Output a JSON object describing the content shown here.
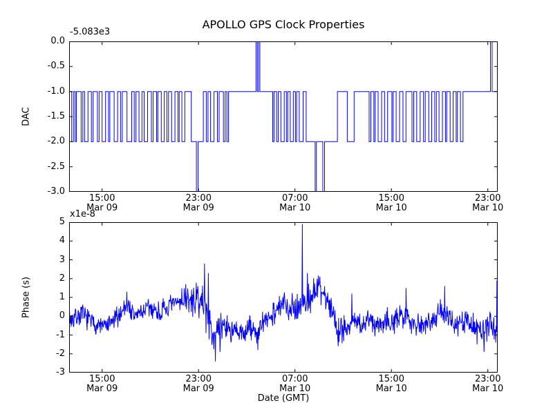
{
  "figure": {
    "background": "#ffffff",
    "line_color": "#0000ff",
    "axes_color": "#000000"
  },
  "chart_data": [
    {
      "type": "line",
      "subplot": "top",
      "title": "APOLLO GPS Clock Properties",
      "ylabel": "DAC",
      "y_offset_label": "-5.083e3",
      "ylim": [
        -3.0,
        0.0
      ],
      "ytick_values": [
        0.0,
        -0.5,
        -1.0,
        -1.5,
        -2.0,
        -2.5,
        -3.0
      ],
      "ytick_labels": [
        "0.0",
        "-0.5",
        "-1.0",
        "-1.5",
        "-2.0",
        "-2.5",
        "-3.0"
      ],
      "xticks": [
        {
          "f": 0.077,
          "time": "15:00",
          "date": "Mar 09"
        },
        {
          "f": 0.302,
          "time": "23:00",
          "date": "Mar 09"
        },
        {
          "f": 0.527,
          "time": "07:00",
          "date": "Mar 10"
        },
        {
          "f": 0.752,
          "time": "15:00",
          "date": "Mar 10"
        },
        {
          "f": 0.977,
          "time": "23:00",
          "date": "Mar 10"
        }
      ],
      "series_steps": [
        [
          0.0,
          -1
        ],
        [
          0.006,
          -2
        ],
        [
          0.01,
          -1
        ],
        [
          0.014,
          -2
        ],
        [
          0.017,
          -1
        ],
        [
          0.028,
          -2
        ],
        [
          0.032,
          -1
        ],
        [
          0.036,
          -2
        ],
        [
          0.044,
          -1
        ],
        [
          0.052,
          -2
        ],
        [
          0.056,
          -1
        ],
        [
          0.066,
          -2
        ],
        [
          0.07,
          -1
        ],
        [
          0.077,
          -2
        ],
        [
          0.085,
          -1
        ],
        [
          0.092,
          -2
        ],
        [
          0.095,
          -1
        ],
        [
          0.105,
          -2
        ],
        [
          0.113,
          -1
        ],
        [
          0.12,
          -2
        ],
        [
          0.124,
          -1
        ],
        [
          0.135,
          -2
        ],
        [
          0.146,
          -1
        ],
        [
          0.152,
          -2
        ],
        [
          0.156,
          -1
        ],
        [
          0.163,
          -2
        ],
        [
          0.17,
          -1
        ],
        [
          0.175,
          -2
        ],
        [
          0.183,
          -1
        ],
        [
          0.192,
          -2
        ],
        [
          0.196,
          -1
        ],
        [
          0.204,
          -2
        ],
        [
          0.207,
          -1
        ],
        [
          0.215,
          -2
        ],
        [
          0.222,
          -1
        ],
        [
          0.228,
          -2
        ],
        [
          0.232,
          -1
        ],
        [
          0.239,
          -2
        ],
        [
          0.247,
          -1
        ],
        [
          0.254,
          -2
        ],
        [
          0.257,
          -1
        ],
        [
          0.263,
          -2
        ],
        [
          0.27,
          -1
        ],
        [
          0.285,
          -2
        ],
        [
          0.297,
          -3
        ],
        [
          0.301,
          -2
        ],
        [
          0.313,
          -1
        ],
        [
          0.32,
          -2
        ],
        [
          0.324,
          -1
        ],
        [
          0.33,
          -2
        ],
        [
          0.338,
          -1
        ],
        [
          0.346,
          -2
        ],
        [
          0.35,
          -1
        ],
        [
          0.36,
          -2
        ],
        [
          0.364,
          -1
        ],
        [
          0.368,
          -2
        ],
        [
          0.372,
          -1
        ],
        [
          0.436,
          0
        ],
        [
          0.439,
          -1
        ],
        [
          0.442,
          0
        ],
        [
          0.445,
          -1
        ],
        [
          0.475,
          -2
        ],
        [
          0.478,
          -1
        ],
        [
          0.484,
          -2
        ],
        [
          0.488,
          -1
        ],
        [
          0.494,
          -2
        ],
        [
          0.502,
          -1
        ],
        [
          0.507,
          -2
        ],
        [
          0.51,
          -1
        ],
        [
          0.516,
          -2
        ],
        [
          0.523,
          -1
        ],
        [
          0.528,
          -2
        ],
        [
          0.531,
          -1
        ],
        [
          0.537,
          -2
        ],
        [
          0.546,
          -1
        ],
        [
          0.553,
          -2
        ],
        [
          0.574,
          -3
        ],
        [
          0.577,
          -2
        ],
        [
          0.592,
          -3
        ],
        [
          0.596,
          -2
        ],
        [
          0.626,
          -1
        ],
        [
          0.649,
          -2
        ],
        [
          0.665,
          -1
        ],
        [
          0.7,
          -2
        ],
        [
          0.704,
          -1
        ],
        [
          0.711,
          -2
        ],
        [
          0.714,
          -1
        ],
        [
          0.721,
          -2
        ],
        [
          0.729,
          -1
        ],
        [
          0.736,
          -2
        ],
        [
          0.743,
          -1
        ],
        [
          0.753,
          -2
        ],
        [
          0.756,
          -1
        ],
        [
          0.763,
          -2
        ],
        [
          0.771,
          -1
        ],
        [
          0.779,
          -2
        ],
        [
          0.786,
          -1
        ],
        [
          0.8,
          -2
        ],
        [
          0.804,
          -1
        ],
        [
          0.811,
          -2
        ],
        [
          0.819,
          -1
        ],
        [
          0.827,
          -2
        ],
        [
          0.831,
          -1
        ],
        [
          0.839,
          -2
        ],
        [
          0.846,
          -1
        ],
        [
          0.853,
          -2
        ],
        [
          0.857,
          -1
        ],
        [
          0.863,
          -2
        ],
        [
          0.871,
          -1
        ],
        [
          0.878,
          -2
        ],
        [
          0.881,
          -1
        ],
        [
          0.889,
          -2
        ],
        [
          0.896,
          -1
        ],
        [
          0.903,
          -2
        ],
        [
          0.906,
          -1
        ],
        [
          0.913,
          -2
        ],
        [
          0.919,
          -1
        ],
        [
          0.983,
          0
        ],
        [
          0.987,
          -1
        ]
      ]
    },
    {
      "type": "line",
      "subplot": "bottom",
      "ylabel": "Phase (s)",
      "xlabel": "Date (GMT)",
      "y_multiplier_label": "x1e-8",
      "ylim": [
        -3,
        5
      ],
      "ytick_values": [
        5,
        4,
        3,
        2,
        1,
        0,
        -1,
        -2,
        -3
      ],
      "ytick_labels": [
        "5",
        "4",
        "3",
        "2",
        "1",
        "0",
        "-1",
        "-2",
        "-3"
      ],
      "xticks": [
        {
          "f": 0.077,
          "time": "15:00",
          "date": "Mar 09"
        },
        {
          "f": 0.302,
          "time": "23:00",
          "date": "Mar 09"
        },
        {
          "f": 0.527,
          "time": "07:00",
          "date": "Mar 10"
        },
        {
          "f": 0.752,
          "time": "15:00",
          "date": "Mar 10"
        },
        {
          "f": 0.977,
          "time": "23:00",
          "date": "Mar 10"
        }
      ],
      "noise_seed": 7,
      "n_points": 1100,
      "envelope": [
        [
          0.0,
          -0.2,
          0.35
        ],
        [
          0.03,
          0.1,
          0.35
        ],
        [
          0.06,
          -0.45,
          0.3
        ],
        [
          0.09,
          -0.55,
          0.3
        ],
        [
          0.115,
          0.0,
          0.35
        ],
        [
          0.135,
          0.7,
          0.4
        ],
        [
          0.15,
          0.0,
          0.35
        ],
        [
          0.17,
          0.25,
          0.35
        ],
        [
          0.19,
          0.45,
          0.35
        ],
        [
          0.21,
          0.2,
          0.35
        ],
        [
          0.23,
          0.4,
          0.35
        ],
        [
          0.25,
          0.7,
          0.4
        ],
        [
          0.27,
          1.0,
          0.4
        ],
        [
          0.285,
          0.7,
          0.45
        ],
        [
          0.3,
          0.9,
          0.5
        ],
        [
          0.315,
          0.6,
          0.6
        ],
        [
          0.33,
          -0.6,
          0.6
        ],
        [
          0.345,
          -1.0,
          0.5
        ],
        [
          0.36,
          -0.4,
          0.45
        ],
        [
          0.38,
          -0.8,
          0.4
        ],
        [
          0.4,
          -1.0,
          0.4
        ],
        [
          0.42,
          -0.6,
          0.4
        ],
        [
          0.44,
          -0.9,
          0.45
        ],
        [
          0.46,
          -0.2,
          0.4
        ],
        [
          0.48,
          0.3,
          0.4
        ],
        [
          0.5,
          0.6,
          0.45
        ],
        [
          0.52,
          0.5,
          0.45
        ],
        [
          0.54,
          0.6,
          0.5
        ],
        [
          0.555,
          0.8,
          0.5
        ],
        [
          0.57,
          1.2,
          0.5
        ],
        [
          0.585,
          1.5,
          0.45
        ],
        [
          0.6,
          1.0,
          0.45
        ],
        [
          0.615,
          0.2,
          0.5
        ],
        [
          0.63,
          -0.7,
          0.5
        ],
        [
          0.65,
          -0.55,
          0.45
        ],
        [
          0.665,
          -0.25,
          0.4
        ],
        [
          0.68,
          -0.5,
          0.4
        ],
        [
          0.7,
          -0.2,
          0.4
        ],
        [
          0.72,
          -0.45,
          0.4
        ],
        [
          0.74,
          -0.1,
          0.4
        ],
        [
          0.76,
          -0.35,
          0.4
        ],
        [
          0.78,
          0.1,
          0.4
        ],
        [
          0.8,
          -0.25,
          0.4
        ],
        [
          0.82,
          -0.5,
          0.4
        ],
        [
          0.84,
          -0.2,
          0.4
        ],
        [
          0.86,
          0.1,
          0.4
        ],
        [
          0.875,
          0.3,
          0.45
        ],
        [
          0.89,
          -0.3,
          0.4
        ],
        [
          0.91,
          -0.5,
          0.4
        ],
        [
          0.93,
          -0.25,
          0.4
        ],
        [
          0.95,
          -0.55,
          0.4
        ],
        [
          0.97,
          -0.9,
          0.45
        ],
        [
          0.985,
          -0.4,
          0.4
        ],
        [
          1.0,
          -0.8,
          0.45
        ]
      ],
      "spikes": [
        [
          0.135,
          1.3
        ],
        [
          0.272,
          1.7
        ],
        [
          0.316,
          2.8
        ],
        [
          0.325,
          2.3
        ],
        [
          0.341,
          -2.4
        ],
        [
          0.352,
          -1.9
        ],
        [
          0.44,
          -1.8
        ],
        [
          0.544,
          4.9
        ],
        [
          0.556,
          2.3
        ],
        [
          0.585,
          2.1
        ],
        [
          0.628,
          -1.6
        ],
        [
          0.66,
          1.2
        ],
        [
          0.786,
          1.5
        ],
        [
          0.876,
          1.6
        ],
        [
          0.952,
          -1.5
        ],
        [
          0.968,
          -1.9
        ],
        [
          0.998,
          1.9
        ]
      ]
    }
  ]
}
